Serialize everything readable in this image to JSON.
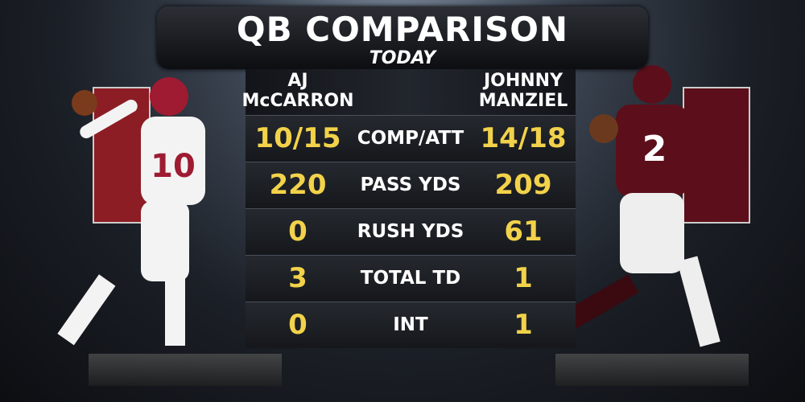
{
  "header": {
    "title": "QB COMPARISON",
    "subtitle": "TODAY"
  },
  "players": [
    {
      "lines": [
        "AJ",
        "McCARRON"
      ]
    },
    {
      "lines": [
        "JOHNNY",
        "MANZIEL"
      ]
    }
  ],
  "rows": [
    [
      "10/15",
      "COMP/ATT",
      "14/18"
    ],
    [
      220,
      "PASS YDS",
      209
    ],
    [
      0,
      "RUSH YDS",
      61
    ],
    [
      3,
      "TOTAL TD",
      1
    ],
    [
      0,
      "INT",
      1
    ]
  ]
}
